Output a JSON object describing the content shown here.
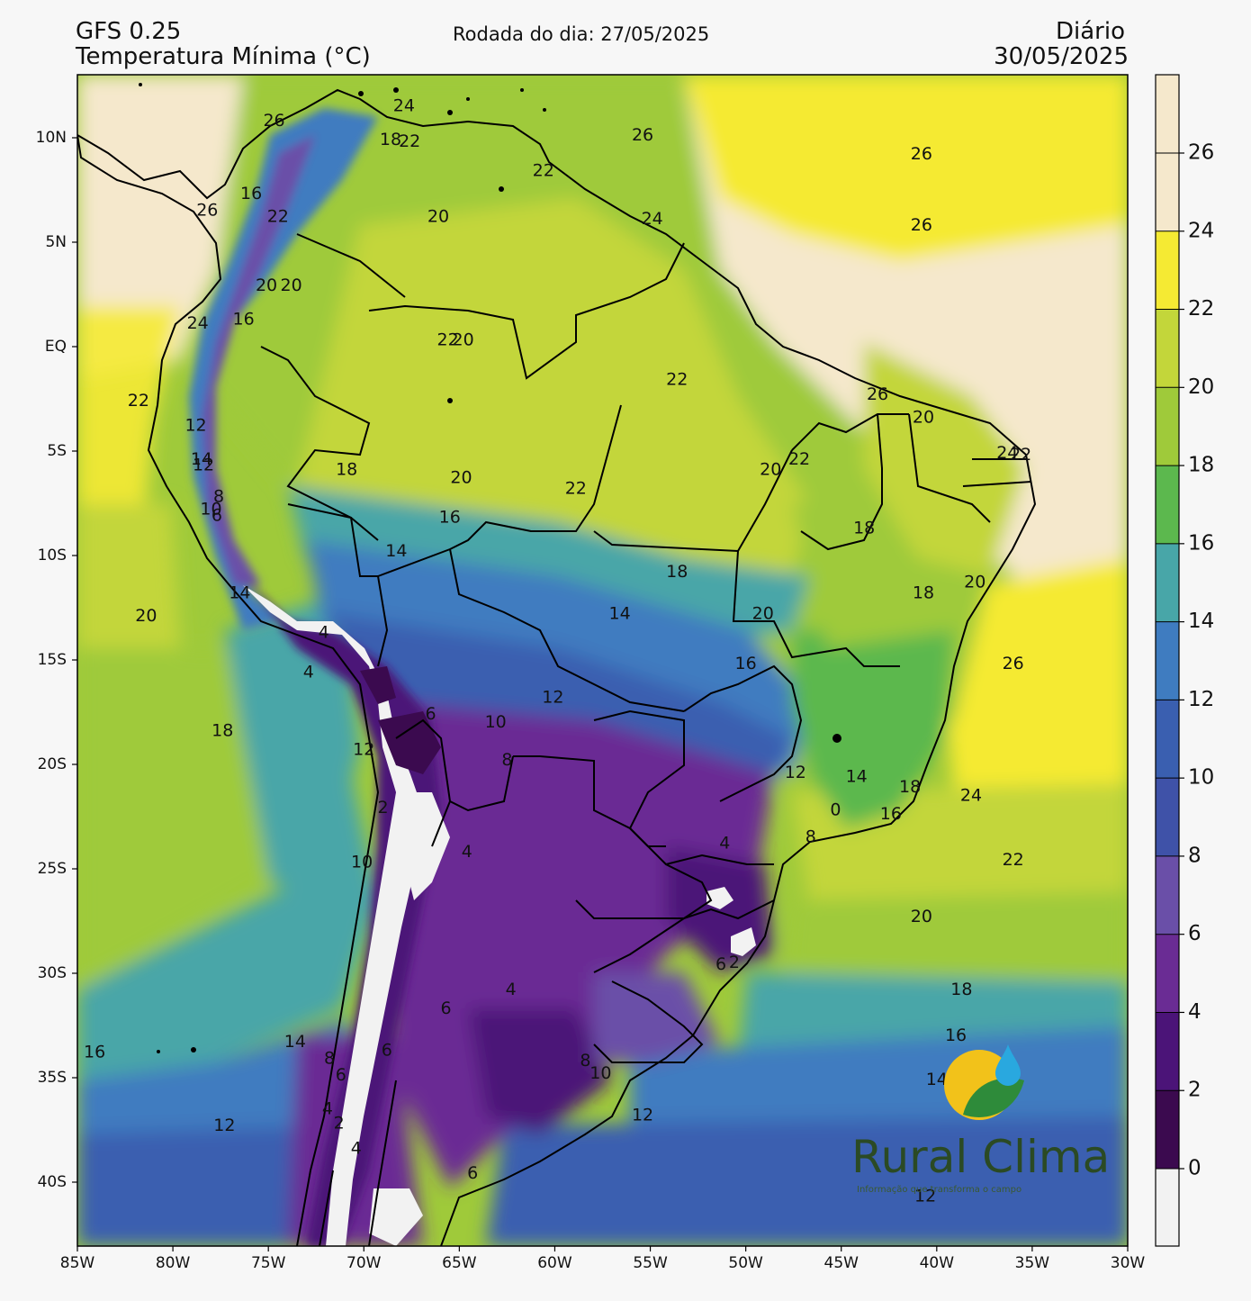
{
  "header": {
    "model": "GFS 0.25",
    "variable": "Temperatura Mínima (°C)",
    "run": "Rodada do dia: 27/05/2025",
    "frequency": "Diário",
    "valid_date": "30/05/2025"
  },
  "axes": {
    "lat_ticks": [
      "10N",
      "5N",
      "EQ",
      "5S",
      "10S",
      "15S",
      "20S",
      "25S",
      "30S",
      "35S",
      "40S"
    ],
    "lon_ticks": [
      "85W",
      "80W",
      "75W",
      "70W",
      "65W",
      "60W",
      "55W",
      "50W",
      "45W",
      "40W",
      "35W",
      "30W"
    ]
  },
  "colorbar": {
    "labels": [
      "0",
      "2",
      "4",
      "6",
      "8",
      "10",
      "12",
      "14",
      "16",
      "18",
      "20",
      "22",
      "24",
      "26"
    ],
    "colors": [
      "#f2f2f2",
      "#3b0a4f",
      "#4b1478",
      "#6a2c94",
      "#6a4fa8",
      "#3f52a8",
      "#3a5fb0",
      "#3f7cc0",
      "#48a6a8",
      "#5cb84e",
      "#9fca3a",
      "#c3d63a",
      "#f5ea33",
      "#f5e8cc"
    ]
  },
  "contour_labels": [
    {
      "v": "26",
      "lon": -74.7,
      "lat": 10.8
    },
    {
      "v": "24",
      "lon": -67.9,
      "lat": 11.5
    },
    {
      "v": "18",
      "lon": -68.6,
      "lat": 9.9
    },
    {
      "v": "22",
      "lon": -67.6,
      "lat": 9.8
    },
    {
      "v": "26",
      "lon": -55.4,
      "lat": 10.1
    },
    {
      "v": "26",
      "lon": -40.8,
      "lat": 9.2
    },
    {
      "v": "16",
      "lon": -75.9,
      "lat": 7.3
    },
    {
      "v": "26",
      "lon": -78.2,
      "lat": 6.5
    },
    {
      "v": "22",
      "lon": -74.5,
      "lat": 6.2
    },
    {
      "v": "20",
      "lon": -66.1,
      "lat": 6.2
    },
    {
      "v": "22",
      "lon": -60.6,
      "lat": 8.4
    },
    {
      "v": "24",
      "lon": -54.9,
      "lat": 6.1
    },
    {
      "v": "26",
      "lon": -40.8,
      "lat": 5.8
    },
    {
      "v": "20",
      "lon": -75.1,
      "lat": 2.9
    },
    {
      "v": "20",
      "lon": -73.8,
      "lat": 2.9
    },
    {
      "v": "24",
      "lon": -78.7,
      "lat": 1.1
    },
    {
      "v": "16",
      "lon": -76.3,
      "lat": 1.3
    },
    {
      "v": "22",
      "lon": -65.6,
      "lat": 0.3
    },
    {
      "v": "20",
      "lon": -64.8,
      "lat": 0.3
    },
    {
      "v": "22",
      "lon": -53.6,
      "lat": -1.6
    },
    {
      "v": "26",
      "lon": -43.1,
      "lat": -2.3
    },
    {
      "v": "20",
      "lon": -40.7,
      "lat": -3.4
    },
    {
      "v": "22",
      "lon": -81.8,
      "lat": -2.6
    },
    {
      "v": "12",
      "lon": -78.8,
      "lat": -3.8
    },
    {
      "v": "24",
      "lon": -36.3,
      "lat": -5.1
    },
    {
      "v": "22",
      "lon": -35.6,
      "lat": -5.2
    },
    {
      "v": "14",
      "lon": -78.5,
      "lat": -5.4
    },
    {
      "v": "12",
      "lon": -78.4,
      "lat": -5.7
    },
    {
      "v": "18",
      "lon": -70.9,
      "lat": -5.9
    },
    {
      "v": "20",
      "lon": -64.9,
      "lat": -6.3
    },
    {
      "v": "20",
      "lon": -48.7,
      "lat": -5.9
    },
    {
      "v": "22",
      "lon": -47.2,
      "lat": -5.4
    },
    {
      "v": "22",
      "lon": -58.9,
      "lat": -6.8
    },
    {
      "v": "8",
      "lon": -77.6,
      "lat": -7.2
    },
    {
      "v": "10",
      "lon": -78.0,
      "lat": -7.8
    },
    {
      "v": "6",
      "lon": -77.7,
      "lat": -8.1
    },
    {
      "v": "16",
      "lon": -65.5,
      "lat": -8.2
    },
    {
      "v": "18",
      "lon": -43.8,
      "lat": -8.7
    },
    {
      "v": "14",
      "lon": -68.3,
      "lat": -9.8
    },
    {
      "v": "18",
      "lon": -53.6,
      "lat": -10.8
    },
    {
      "v": "20",
      "lon": -38.0,
      "lat": -11.3
    },
    {
      "v": "18",
      "lon": -40.7,
      "lat": -11.8
    },
    {
      "v": "14",
      "lon": -76.5,
      "lat": -11.8
    },
    {
      "v": "20",
      "lon": -81.4,
      "lat": -12.9
    },
    {
      "v": "14",
      "lon": -56.6,
      "lat": -12.8
    },
    {
      "v": "20",
      "lon": -49.1,
      "lat": -12.8
    },
    {
      "v": "4",
      "lon": -72.1,
      "lat": -13.7
    },
    {
      "v": "4",
      "lon": -72.9,
      "lat": -15.6
    },
    {
      "v": "16",
      "lon": -50.0,
      "lat": -15.2
    },
    {
      "v": "26",
      "lon": -36.0,
      "lat": -15.2
    },
    {
      "v": "12",
      "lon": -60.1,
      "lat": -16.8
    },
    {
      "v": "6",
      "lon": -66.5,
      "lat": -17.6
    },
    {
      "v": "10",
      "lon": -63.1,
      "lat": -18.0
    },
    {
      "v": "18",
      "lon": -77.4,
      "lat": -18.4
    },
    {
      "v": "12",
      "lon": -70.0,
      "lat": -19.3
    },
    {
      "v": "8",
      "lon": -62.5,
      "lat": -19.8
    },
    {
      "v": "12",
      "lon": -47.4,
      "lat": -20.4
    },
    {
      "v": "14",
      "lon": -44.2,
      "lat": -20.6
    },
    {
      "v": "18",
      "lon": -41.4,
      "lat": -21.1
    },
    {
      "v": "24",
      "lon": -38.2,
      "lat": -21.5
    },
    {
      "v": "2",
      "lon": -69.0,
      "lat": -22.1
    },
    {
      "v": "0",
      "lon": -45.3,
      "lat": -22.2
    },
    {
      "v": "16",
      "lon": -42.4,
      "lat": -22.4
    },
    {
      "v": "8",
      "lon": -46.6,
      "lat": -23.5
    },
    {
      "v": "4",
      "lon": -51.1,
      "lat": -23.8
    },
    {
      "v": "4",
      "lon": -64.6,
      "lat": -24.2
    },
    {
      "v": "10",
      "lon": -70.1,
      "lat": -24.7
    },
    {
      "v": "22",
      "lon": -36.0,
      "lat": -24.6
    },
    {
      "v": "20",
      "lon": -40.8,
      "lat": -27.3
    },
    {
      "v": "6",
      "lon": -51.3,
      "lat": -29.6
    },
    {
      "v": "2",
      "lon": -50.6,
      "lat": -29.5
    },
    {
      "v": "4",
      "lon": -62.3,
      "lat": -30.8
    },
    {
      "v": "18",
      "lon": -38.7,
      "lat": -30.8
    },
    {
      "v": "6",
      "lon": -65.7,
      "lat": -31.7
    },
    {
      "v": "16",
      "lon": -39.0,
      "lat": -33.0
    },
    {
      "v": "14",
      "lon": -73.6,
      "lat": -33.3
    },
    {
      "v": "6",
      "lon": -68.8,
      "lat": -33.7
    },
    {
      "v": "8",
      "lon": -71.8,
      "lat": -34.1
    },
    {
      "v": "16",
      "lon": -84.1,
      "lat": -33.8
    },
    {
      "v": "8",
      "lon": -58.4,
      "lat": -34.2
    },
    {
      "v": "10",
      "lon": -57.6,
      "lat": -34.8
    },
    {
      "v": "6",
      "lon": -71.2,
      "lat": -34.9
    },
    {
      "v": "14",
      "lon": -40.0,
      "lat": -35.1
    },
    {
      "v": "4",
      "lon": -71.9,
      "lat": -36.5
    },
    {
      "v": "12",
      "lon": -55.4,
      "lat": -36.8
    },
    {
      "v": "2",
      "lon": -71.3,
      "lat": -37.2
    },
    {
      "v": "12",
      "lon": -77.3,
      "lat": -37.3
    },
    {
      "v": "4",
      "lon": -70.4,
      "lat": -38.4
    },
    {
      "v": "6",
      "lon": -64.3,
      "lat": -39.6
    },
    {
      "v": "12",
      "lon": -40.6,
      "lat": -40.7
    }
  ],
  "logo": {
    "name": "Rural Clima",
    "tagline": "Informação que transforma o campo"
  }
}
